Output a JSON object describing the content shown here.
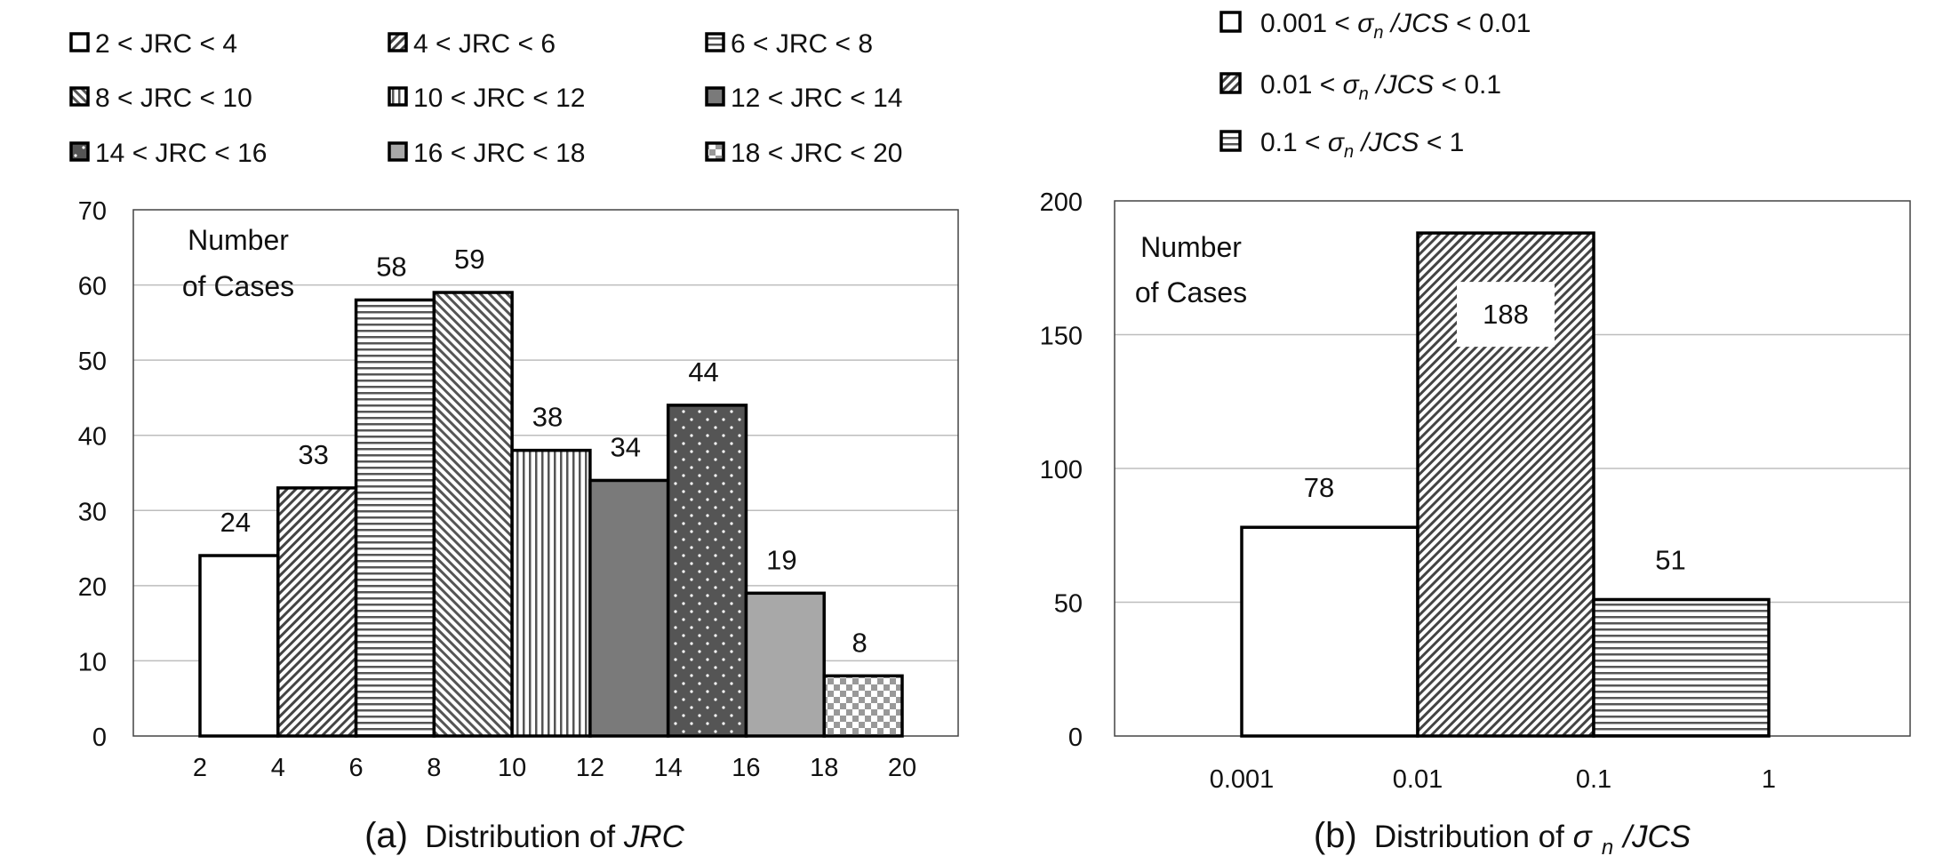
{
  "chart_data": [
    {
      "type": "bar",
      "title": "Distribution of JRC",
      "caption_prefix": "(a)",
      "caption_text": "Distribution of ",
      "caption_italic": "JRC",
      "annotation_line1": "Number",
      "annotation_line2": "of Cases",
      "x_ticks": [
        "2",
        "4",
        "6",
        "8",
        "10",
        "12",
        "14",
        "16",
        "18",
        "20"
      ],
      "y_ticks": [
        "0",
        "10",
        "20",
        "30",
        "40",
        "50",
        "60",
        "70"
      ],
      "ylim": [
        0,
        70
      ],
      "xlim": [
        2,
        20
      ],
      "grid": true,
      "legend_position": "top",
      "bins": [
        {
          "label": "2 < JRC < 4",
          "from": 2,
          "to": 4,
          "value": 24,
          "value_label": "24",
          "pattern": "white"
        },
        {
          "label": "4 < JRC < 6",
          "from": 4,
          "to": 6,
          "value": 33,
          "value_label": "33",
          "pattern": "diag-right"
        },
        {
          "label": "6 < JRC < 8",
          "from": 6,
          "to": 8,
          "value": 58,
          "value_label": "58",
          "pattern": "horizontal"
        },
        {
          "label": "8 < JRC < 10",
          "from": 8,
          "to": 10,
          "value": 59,
          "value_label": "59",
          "pattern": "diag-left"
        },
        {
          "label": "10 < JRC < 12",
          "from": 10,
          "to": 12,
          "value": 38,
          "value_label": "38",
          "pattern": "vertical"
        },
        {
          "label": "12 < JRC < 14",
          "from": 12,
          "to": 14,
          "value": 34,
          "value_label": "34",
          "pattern": "dark-gray"
        },
        {
          "label": "14 < JRC < 16",
          "from": 14,
          "to": 16,
          "value": 44,
          "value_label": "44",
          "pattern": "dots"
        },
        {
          "label": "16 < JRC < 18",
          "from": 16,
          "to": 18,
          "value": 19,
          "value_label": "19",
          "pattern": "light-gray"
        },
        {
          "label": "18 < JRC < 20",
          "from": 18,
          "to": 20,
          "value": 8,
          "value_label": "8",
          "pattern": "checker"
        }
      ]
    },
    {
      "type": "bar",
      "title": "Distribution of σn/JCS",
      "caption_prefix": "(b)",
      "caption_text": "Distribution of ",
      "caption_sigma": "σ",
      "caption_sub": "n",
      "caption_tail": "/JCS",
      "annotation_line1": "Number",
      "annotation_line2": "of Cases",
      "x_ticks": [
        "0.001",
        "0.01",
        "0.1",
        "1"
      ],
      "y_ticks": [
        "0",
        "50",
        "100",
        "150",
        "200"
      ],
      "ylim": [
        0,
        200
      ],
      "grid": true,
      "legend_position": "top",
      "bins": [
        {
          "lo": "0.001",
          "hi": "0.01",
          "value": 78,
          "value_label": "78",
          "pattern": "white"
        },
        {
          "lo": "0.01",
          "hi": "0.1",
          "value": 188,
          "value_label": "188",
          "pattern": "diag-right"
        },
        {
          "lo": "0.1",
          "hi": "1",
          "value": 51,
          "value_label": "51",
          "pattern": "horizontal"
        }
      ],
      "legend_sigma": "σ",
      "legend_sub": "n",
      "legend_tail": "/JCS",
      "legend_lt": "<"
    }
  ],
  "colors": {
    "bar_outline": "#000000",
    "grid": "#bdbdbd",
    "frame": "#444444",
    "dark_gray": "#7a7a7a",
    "light_gray": "#a8a8a8",
    "text": "#111111"
  }
}
